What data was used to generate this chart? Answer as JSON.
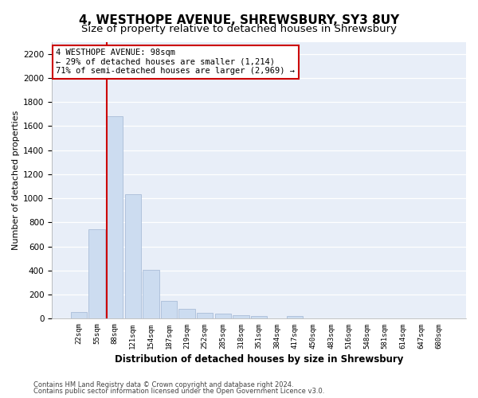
{
  "title": "4, WESTHOPE AVENUE, SHREWSBURY, SY3 8UY",
  "subtitle": "Size of property relative to detached houses in Shrewsbury",
  "xlabel": "Distribution of detached houses by size in Shrewsbury",
  "ylabel": "Number of detached properties",
  "bar_labels": [
    "22sqm",
    "55sqm",
    "88sqm",
    "121sqm",
    "154sqm",
    "187sqm",
    "219sqm",
    "252sqm",
    "285sqm",
    "318sqm",
    "351sqm",
    "384sqm",
    "417sqm",
    "450sqm",
    "483sqm",
    "516sqm",
    "548sqm",
    "581sqm",
    "614sqm",
    "647sqm",
    "680sqm"
  ],
  "bar_values": [
    55,
    745,
    1680,
    1035,
    405,
    150,
    85,
    50,
    40,
    28,
    25,
    0,
    20,
    0,
    0,
    0,
    0,
    0,
    0,
    0,
    0
  ],
  "bar_color": "#ccdcf0",
  "bar_edgecolor": "#aabdd8",
  "vline_x_index": 2,
  "vline_color": "#cc0000",
  "ylim": [
    0,
    2300
  ],
  "yticks": [
    0,
    200,
    400,
    600,
    800,
    1000,
    1200,
    1400,
    1600,
    1800,
    2000,
    2200
  ],
  "annotation_text": "4 WESTHOPE AVENUE: 98sqm\n← 29% of detached houses are smaller (1,214)\n71% of semi-detached houses are larger (2,969) →",
  "annotation_box_facecolor": "#ffffff",
  "annotation_box_edgecolor": "#cc0000",
  "footer1": "Contains HM Land Registry data © Crown copyright and database right 2024.",
  "footer2": "Contains public sector information licensed under the Open Government Licence v3.0.",
  "bg_color": "#ffffff",
  "plot_bg_color": "#e8eef8",
  "grid_color": "#ffffff",
  "title_fontsize": 11,
  "subtitle_fontsize": 9.5,
  "xlabel_fontsize": 8.5,
  "ylabel_fontsize": 8,
  "tick_fontsize": 7.5,
  "xtick_fontsize": 6.5,
  "footer_fontsize": 6,
  "annotation_fontsize": 7.5
}
